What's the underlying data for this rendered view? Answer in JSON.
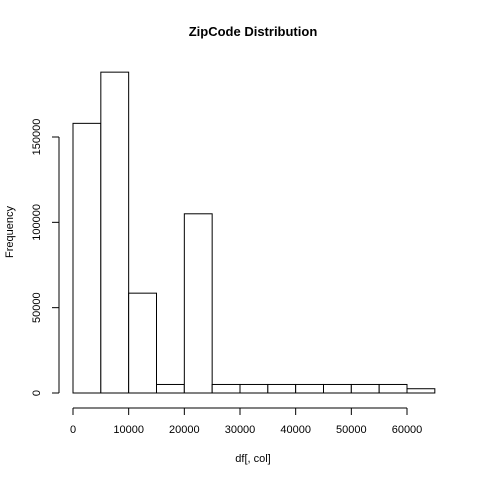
{
  "chart_data": {
    "type": "bar",
    "title": "ZipCode  Distribution",
    "xlabel": "df[, col]",
    "ylabel": "Frequency",
    "bins": [
      {
        "start": 0,
        "end": 5000,
        "value": 158000
      },
      {
        "start": 5000,
        "end": 10000,
        "value": 188000
      },
      {
        "start": 10000,
        "end": 15000,
        "value": 58500
      },
      {
        "start": 15000,
        "end": 20000,
        "value": 5000
      },
      {
        "start": 20000,
        "end": 25000,
        "value": 105000
      },
      {
        "start": 25000,
        "end": 30000,
        "value": 5000
      },
      {
        "start": 30000,
        "end": 35000,
        "value": 5000
      },
      {
        "start": 35000,
        "end": 40000,
        "value": 5000
      },
      {
        "start": 40000,
        "end": 45000,
        "value": 5000
      },
      {
        "start": 45000,
        "end": 50000,
        "value": 5000
      },
      {
        "start": 50000,
        "end": 55000,
        "value": 5000
      },
      {
        "start": 55000,
        "end": 60000,
        "value": 5000
      },
      {
        "start": 60000,
        "end": 65000,
        "value": 2500
      }
    ],
    "xlim": [
      0,
      65000
    ],
    "ylim": [
      0,
      190000
    ],
    "x_ticks": [
      0,
      10000,
      20000,
      30000,
      40000,
      50000,
      60000
    ],
    "x_tick_labels": [
      "0",
      "10000",
      "20000",
      "30000",
      "40000",
      "50000",
      "60000"
    ],
    "y_ticks": [
      0,
      50000,
      100000,
      150000
    ],
    "y_tick_labels": [
      "0",
      "50000",
      "100000",
      "150000"
    ],
    "grid": false,
    "bar_fill": "#ffffff",
    "bar_stroke": "#000000"
  }
}
